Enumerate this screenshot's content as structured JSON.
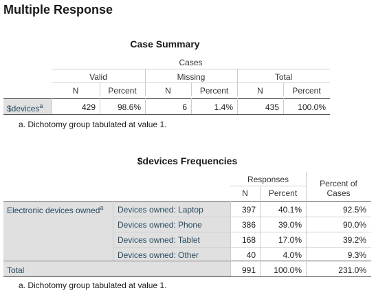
{
  "heading": "Multiple Response",
  "case_summary": {
    "title": "Case Summary",
    "cases_label": "Cases",
    "groups": [
      "Valid",
      "Missing",
      "Total"
    ],
    "n_label": "N",
    "percent_label": "Percent",
    "row_label": "$devices",
    "row_sup": "a",
    "values": [
      "429",
      "98.6%",
      "6",
      "1.4%",
      "435",
      "100.0%"
    ],
    "footnote": "a. Dichotomy group tabulated at value 1."
  },
  "frequencies": {
    "title": "$devices Frequencies",
    "responses_label": "Responses",
    "n_label": "N",
    "percent_label": "Percent",
    "poc_line1": "Percent of",
    "poc_line2": "Cases",
    "group_label": "Electronic devices owned",
    "group_sup": "a",
    "rows": [
      {
        "label": "Devices owned: Laptop",
        "n": "397",
        "percent": "40.1%",
        "poc": "92.5%"
      },
      {
        "label": "Devices owned: Phone",
        "n": "386",
        "percent": "39.0%",
        "poc": "90.0%"
      },
      {
        "label": "Devices owned: Tablet",
        "n": "168",
        "percent": "17.0%",
        "poc": "39.2%"
      },
      {
        "label": "Devices owned: Other",
        "n": "40",
        "percent": "4.0%",
        "poc": "9.3%"
      }
    ],
    "total_label": "Total",
    "total": {
      "n": "991",
      "percent": "100.0%",
      "poc": "231.0%"
    },
    "footnote": "a. Dichotomy group tabulated at value 1."
  }
}
